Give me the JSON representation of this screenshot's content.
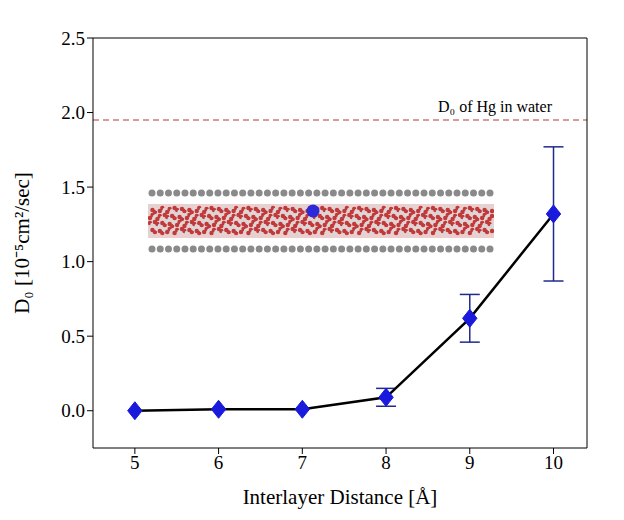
{
  "chart_data": {
    "type": "line",
    "x_label": "Interlayer Distance [Å]",
    "y_label": "D₀ [10⁻⁵cm²/sec]",
    "x": [
      5,
      6,
      7,
      8,
      9,
      10
    ],
    "values": [
      0.0,
      0.01,
      0.01,
      0.09,
      0.62,
      1.32
    ],
    "errors": [
      0,
      0,
      0,
      0.06,
      0.16,
      0.45
    ],
    "color": "#1a1adc",
    "marker": "diamond",
    "line_style": "solid",
    "xlim": [
      4.5,
      10.4
    ],
    "xticks": [
      5,
      6,
      7,
      8,
      9,
      10
    ],
    "ylim": [
      -0.25,
      2.5
    ],
    "yticks": [
      {
        "value": 0,
        "label": "0.0"
      },
      0.5,
      {
        "value": 1,
        "label": "1.0"
      },
      1.5,
      {
        "value": 2,
        "label": "2.0"
      },
      2.5
    ],
    "grid": false,
    "reference_lines": [
      {
        "value": 1.95,
        "label": "D₀ of Hg in water",
        "color": "#b03a3a",
        "line_style": "dashed"
      }
    ]
  }
}
